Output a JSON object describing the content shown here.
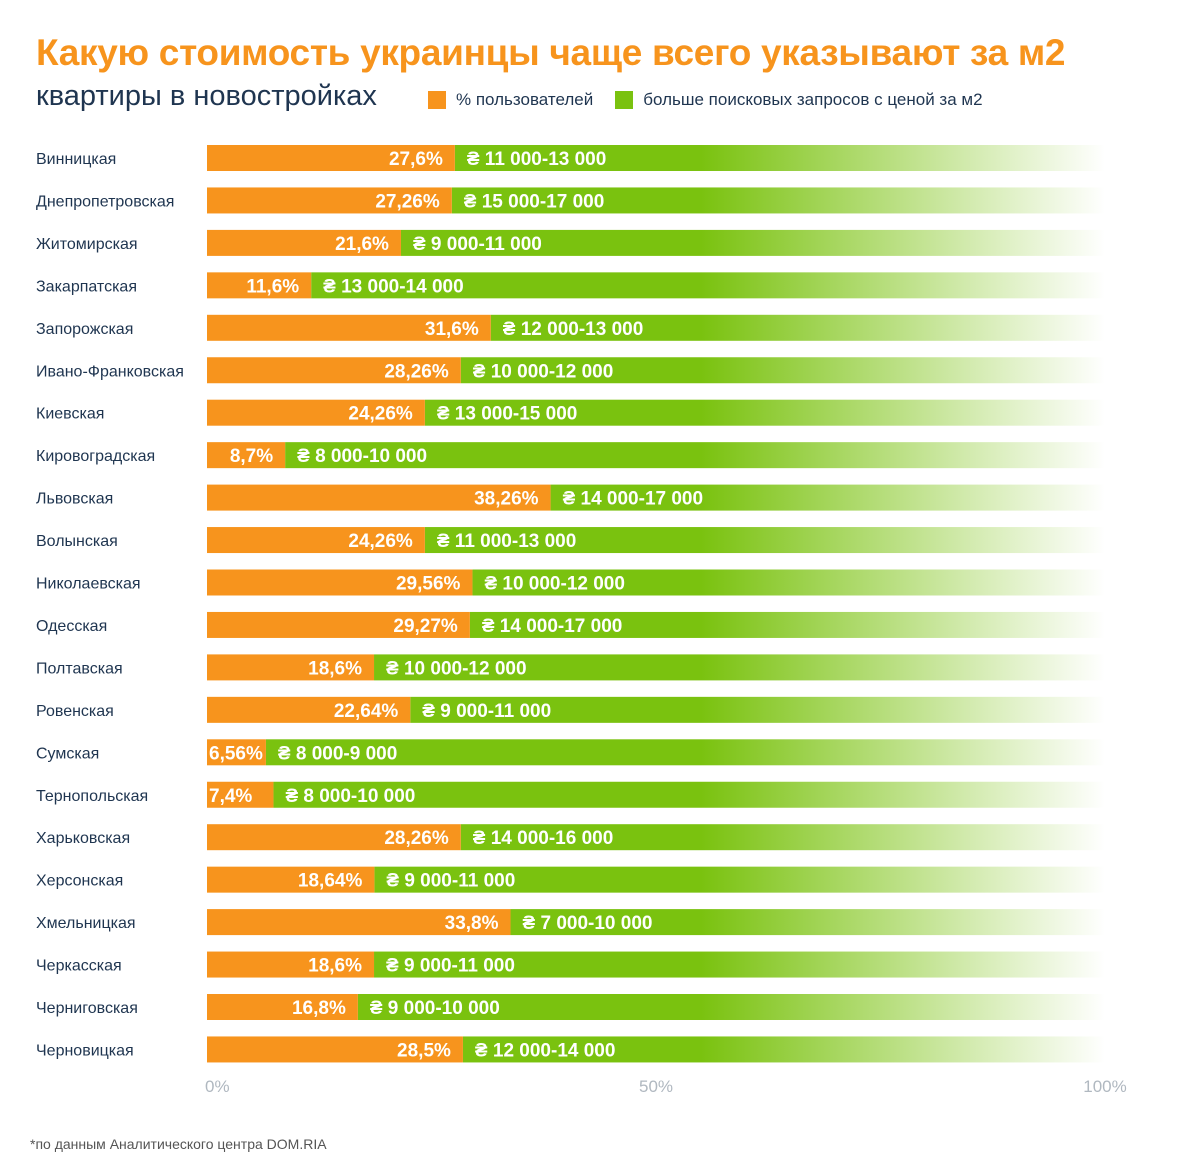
{
  "title": "Какую стоимость украинцы чаще всего указывают за м2",
  "subtitle": "квартиры в новостройках",
  "legend": [
    {
      "label": "% пользователей",
      "color": "#f7941d"
    },
    {
      "label": "больше поисковых запросов с ценой за м2",
      "color": "#7ac20f"
    }
  ],
  "footnote": "*по данным Аналитического центра DOM.RIA",
  "chart_data": {
    "type": "bar",
    "orientation": "horizontal",
    "stacked": true,
    "xlim": [
      0,
      100
    ],
    "ticks": [
      "0%",
      "50%",
      "100%"
    ],
    "tick_values": [
      0,
      50,
      100
    ],
    "colors": {
      "share": "#f7941d",
      "rest": "#7ac20f"
    },
    "categories": [
      "Винницкая",
      "Днепропетровская",
      "Житомирская",
      "Закарпатская",
      "Запорожская",
      "Ивано-Франковская",
      "Киевская",
      "Кировоградская",
      "Львовская",
      "Волынская",
      "Николаевская",
      "Одесская",
      "Полтавская",
      "Ровенская",
      "Сумская",
      "Тернопольская",
      "Харьковская",
      "Херсонская",
      "Хмельницкая",
      "Черкасская",
      "Черниговская",
      "Черновицкая"
    ],
    "values": [
      27.6,
      27.26,
      21.6,
      11.6,
      31.6,
      28.26,
      24.26,
      8.7,
      38.26,
      24.26,
      29.56,
      29.27,
      18.6,
      22.64,
      6.56,
      7.4,
      28.26,
      18.64,
      33.8,
      18.6,
      16.8,
      28.5
    ],
    "value_labels": [
      "27,6%",
      "27,26%",
      "21,6%",
      "11,6%",
      "31,6%",
      "28,26%",
      "24,26%",
      "8,7%",
      "38,26%",
      "24,26%",
      "29,56%",
      "29,27%",
      "18,6%",
      "22,64%",
      "6,56%",
      "7,4%",
      "28,26%",
      "18,64%",
      "33,8%",
      "18,6%",
      "16,8%",
      "28,5%"
    ],
    "price_labels": [
      "₴ 11 000-13 000",
      "₴ 15 000-17 000",
      "₴ 9 000-11 000",
      "₴ 13 000-14 000",
      "₴ 12 000-13 000",
      "₴ 10 000-12 000",
      "₴ 13 000-15 000",
      "₴ 8 000-10 000",
      "₴ 14 000-17 000",
      "₴ 11 000-13 000",
      "₴ 10 000-12 000",
      "₴ 14 000-17 000",
      "₴ 10 000-12 000",
      "₴ 9 000-11 000",
      "₴ 8 000-9 000",
      "₴ 8 000-10 000",
      "₴ 14 000-16 000",
      "₴ 9 000-11 000",
      "₴ 7 000-10 000",
      "₴ 9 000-11 000",
      "₴ 9 000-10 000",
      "₴ 12 000-14 000"
    ]
  }
}
